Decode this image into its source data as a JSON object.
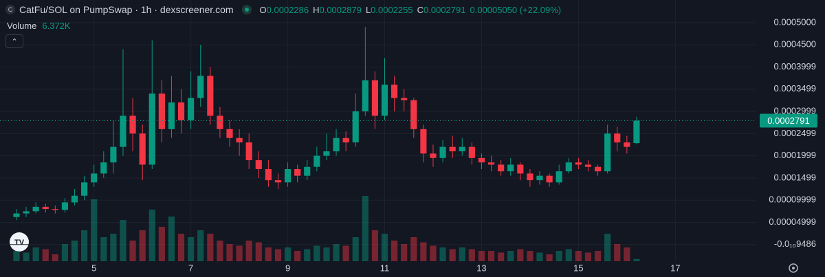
{
  "header": {
    "icon_letter": "C",
    "title": "CatFu/SOL on PumpSwap · 1h · dexscreener.com",
    "ohlc": [
      {
        "key": "O",
        "value": "0.0002286"
      },
      {
        "key": "H",
        "value": "0.0002879"
      },
      {
        "key": "L",
        "value": "0.0002255"
      },
      {
        "key": "C",
        "value": "0.0002791"
      }
    ],
    "change": "0.00005050 (+22.09%)",
    "volume_label": "Volume",
    "volume_value": "6.372K"
  },
  "chart_data": {
    "type": "candlestick",
    "x": [
      3.4,
      3.6,
      3.8,
      4.0,
      4.2,
      4.4,
      4.6,
      4.8,
      5.0,
      5.2,
      5.4,
      5.6,
      5.8,
      6.0,
      6.2,
      6.4,
      6.6,
      6.8,
      7.0,
      7.2,
      7.4,
      7.6,
      7.8,
      8.0,
      8.2,
      8.4,
      8.6,
      8.8,
      9.0,
      9.2,
      9.4,
      9.6,
      9.8,
      10.0,
      10.2,
      10.4,
      10.6,
      10.8,
      11.0,
      11.2,
      11.4,
      11.6,
      11.8,
      12.0,
      12.2,
      12.4,
      12.6,
      12.8,
      13.0,
      13.2,
      13.4,
      13.6,
      13.8,
      14.0,
      14.2,
      14.4,
      14.6,
      14.8,
      15.0,
      15.2,
      15.4,
      15.6,
      15.8,
      16.0,
      16.2
    ],
    "open": [
      6.2e-05,
      7e-05,
      7.5e-05,
      8.5e-05,
      8e-05,
      7.8e-05,
      9.5e-05,
      0.00011,
      0.00014,
      0.00016,
      0.000185,
      0.00022,
      0.00029,
      0.00025,
      0.00018,
      0.00034,
      0.00026,
      0.00032,
      0.00028,
      0.00033,
      0.00038,
      0.00029,
      0.00026,
      0.00024,
      0.00023,
      0.00019,
      0.00017,
      0.000145,
      0.00014,
      0.00017,
      0.000155,
      0.000175,
      0.0002,
      0.00021,
      0.00024,
      0.00023,
      0.0003,
      0.00037,
      0.00029,
      0.00036,
      0.00033,
      0.000325,
      0.00026,
      0.000205,
      0.000195,
      0.00022,
      0.00021,
      0.00022,
      0.000195,
      0.000185,
      0.00018,
      0.000165,
      0.00018,
      0.00016,
      0.000145,
      0.000155,
      0.00014,
      0.000165,
      0.000185,
      0.00018,
      0.000175,
      0.000165,
      0.00025,
      0.00023,
      0.0002286
    ],
    "high": [
      8e-05,
      8.5e-05,
      9.5e-05,
      9.2e-05,
      8.8e-05,
      0.000105,
      0.000125,
      0.000155,
      0.00018,
      0.00021,
      0.00028,
      0.00044,
      0.00033,
      0.00027,
      0.00046,
      0.00037,
      0.00038,
      0.00035,
      0.00039,
      0.00045,
      0.0004,
      0.00031,
      0.00028,
      0.00026,
      0.00025,
      0.00021,
      0.00019,
      0.00016,
      0.000185,
      0.00018,
      0.00019,
      0.00022,
      0.00025,
      0.00026,
      0.000255,
      0.00034,
      0.00049,
      0.00039,
      0.00042,
      0.00038,
      0.00035,
      0.00033,
      0.00027,
      0.000225,
      0.000235,
      0.000245,
      0.00024,
      0.00023,
      0.000205,
      0.0002,
      0.00019,
      0.000195,
      0.000185,
      0.00017,
      0.000165,
      0.00016,
      0.00018,
      0.000195,
      0.000195,
      0.00019,
      0.00018,
      0.00027,
      0.000265,
      0.000245,
      0.0002879
    ],
    "low": [
      5.5e-05,
      6.2e-05,
      7e-05,
      7.2e-05,
      7e-05,
      7.2e-05,
      8.8e-05,
      0.0001,
      0.00013,
      0.00015,
      0.00016,
      0.0002,
      0.00021,
      0.000145,
      0.00017,
      0.00023,
      0.00024,
      0.00025,
      0.00026,
      0.00031,
      0.00027,
      0.00024,
      0.00022,
      0.0002,
      0.00017,
      0.00015,
      0.00013,
      0.000125,
      0.00013,
      0.00014,
      0.000145,
      0.000165,
      0.00019,
      0.0002,
      0.00021,
      0.00022,
      0.00029,
      0.00026,
      0.00028,
      0.0003,
      0.0003,
      0.00024,
      0.000185,
      0.000175,
      0.000185,
      0.000195,
      0.0002,
      0.00018,
      0.00017,
      0.000165,
      0.000155,
      0.000155,
      0.000145,
      0.00013,
      0.000135,
      0.00013,
      0.000135,
      0.00016,
      0.00017,
      0.000165,
      0.000155,
      0.00016,
      0.00021,
      0.000205,
      0.0002255
    ],
    "close": [
      7e-05,
      7.5e-05,
      8.5e-05,
      8e-05,
      7.8e-05,
      9.5e-05,
      0.00011,
      0.00014,
      0.00016,
      0.000185,
      0.00022,
      0.00029,
      0.00025,
      0.00018,
      0.00034,
      0.00026,
      0.00032,
      0.00028,
      0.00033,
      0.00038,
      0.00029,
      0.00026,
      0.00024,
      0.00023,
      0.00019,
      0.00017,
      0.000145,
      0.00014,
      0.00017,
      0.000155,
      0.000175,
      0.0002,
      0.00021,
      0.00024,
      0.00023,
      0.0003,
      0.00037,
      0.00029,
      0.00036,
      0.00033,
      0.000325,
      0.00026,
      0.000205,
      0.000195,
      0.00022,
      0.00021,
      0.00022,
      0.000195,
      0.000185,
      0.00018,
      0.000165,
      0.00018,
      0.00016,
      0.000145,
      0.000155,
      0.00014,
      0.000165,
      0.000185,
      0.00018,
      0.000175,
      0.000165,
      0.00025,
      0.00023,
      0.00022,
      0.0002791
    ],
    "volume": [
      30000,
      25000,
      40000,
      35000,
      20000,
      50000,
      60000,
      90000,
      180000,
      70000,
      80000,
      120000,
      60000,
      90000,
      150000,
      100000,
      130000,
      80000,
      70000,
      90000,
      80000,
      60000,
      50000,
      45000,
      60000,
      55000,
      40000,
      35000,
      40000,
      30000,
      35000,
      45000,
      40000,
      50000,
      45000,
      70000,
      190000,
      90000,
      80000,
      60000,
      50000,
      70000,
      55000,
      45000,
      40000,
      35000,
      40000,
      35000,
      30000,
      30000,
      25000,
      30000,
      35000,
      30000,
      25000,
      20000,
      30000,
      35000,
      30000,
      25000,
      30000,
      80000,
      50000,
      40000,
      6372
    ],
    "up_color": "#089981",
    "down_color": "#f23645",
    "xlim": [
      3.06,
      18.67
    ],
    "xticks": [
      5,
      7,
      9,
      11,
      13,
      15,
      17
    ],
    "ylim": [
      -3.75e-05,
      0.0005508
    ],
    "yticks": [
      {
        "value": -9.486e-11,
        "label": "-0.0₁₀9486"
      },
      4.999e-05,
      9.999e-05,
      0.0001499,
      0.0001999,
      0.0002499,
      0.0002999,
      0.0003499,
      0.0003999,
      {
        "value": 0.00045,
        "label": "0.0004500"
      },
      {
        "value": 0.0005,
        "label": "0.0005000"
      }
    ],
    "y2lim": [
      0,
      200000
    ],
    "grid": true,
    "last_price": 0.0002791
  }
}
